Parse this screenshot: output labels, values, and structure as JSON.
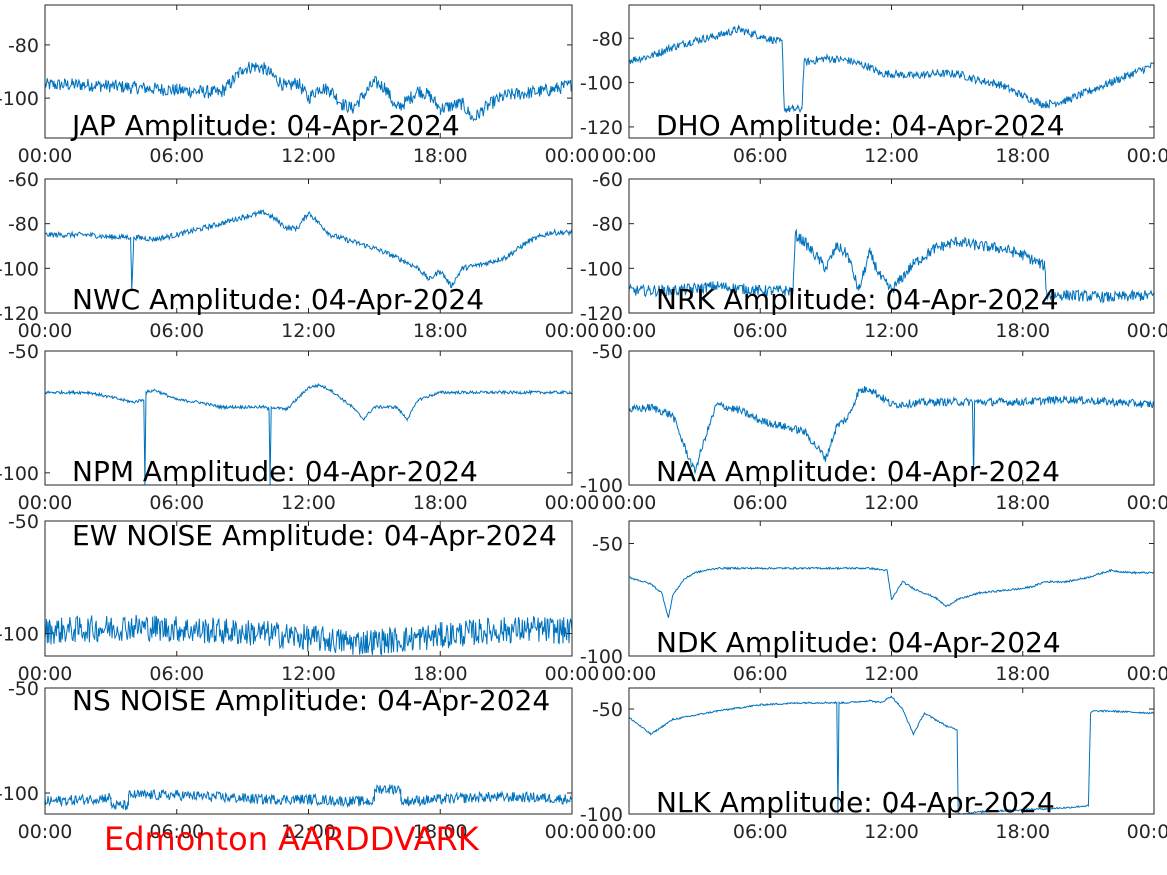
{
  "station_label": "Edmonton AARDDVARK",
  "colors": {
    "line": "#0072bd",
    "station": "#ff0000",
    "axis": "#262626"
  },
  "chart_data": [
    {
      "type": "line",
      "title": "JAP Amplitude: 04-Apr-2024",
      "xticks": [
        "00:00",
        "06:00",
        "12:00",
        "18:00",
        "00:00"
      ],
      "ylim": [
        -115,
        -65
      ],
      "yticks": [
        -80,
        -100
      ],
      "ytick_labels": [
        "-80",
        "-100"
      ],
      "noise": 2.5,
      "x": [
        0,
        2,
        4,
        6,
        8,
        8.5,
        9,
        9.5,
        10,
        11,
        11.5,
        12,
        12.5,
        13,
        13.5,
        14,
        14.5,
        15,
        15.5,
        16,
        16.5,
        17,
        17.5,
        18,
        19,
        19.5,
        20,
        20.5,
        21,
        22,
        23,
        24
      ],
      "y": [
        -95,
        -95,
        -96,
        -97,
        -98,
        -94,
        -89,
        -88,
        -89,
        -96,
        -94,
        -100,
        -96,
        -97,
        -102,
        -104,
        -99,
        -94,
        -96,
        -104,
        -101,
        -97,
        -99,
        -104,
        -102,
        -108,
        -104,
        -101,
        -99,
        -98,
        -97,
        -95
      ]
    },
    {
      "type": "line",
      "title": "DHO Amplitude: 04-Apr-2024",
      "xticks": [
        "00:00",
        "06:00",
        "12:00",
        "18:00",
        "00:00"
      ],
      "ylim": [
        -125,
        -65
      ],
      "yticks": [
        -80,
        -100,
        -120
      ],
      "ytick_labels": [
        "-80",
        "-100",
        "-120"
      ],
      "noise": 1.8,
      "x": [
        0,
        1,
        2,
        3,
        4,
        5,
        6,
        7,
        7.1,
        7.5,
        7.9,
        8,
        9,
        10,
        11,
        11.5,
        12,
        13,
        14,
        15,
        16,
        17,
        18,
        19,
        20,
        21,
        22,
        23,
        24
      ],
      "y": [
        -90,
        -88,
        -84,
        -81,
        -79,
        -76,
        -79,
        -82,
        -112,
        -112,
        -112,
        -91,
        -89,
        -90,
        -93,
        -96,
        -96,
        -97,
        -96,
        -96,
        -99,
        -101,
        -106,
        -110,
        -108,
        -104,
        -100,
        -96,
        -92
      ]
    },
    {
      "type": "line",
      "title": "NWC Amplitude: 04-Apr-2024",
      "xticks": [
        "00:00",
        "06:00",
        "12:00",
        "18:00",
        "00:00"
      ],
      "ylim": [
        -120,
        -60
      ],
      "yticks": [
        -60,
        -80,
        -100,
        -120
      ],
      "ytick_labels": [
        "-60",
        "-80",
        "-100",
        "-120"
      ],
      "noise": 1.2,
      "x": [
        0,
        2,
        3,
        3.9,
        3.95,
        4.05,
        5,
        6,
        8,
        9,
        10,
        10.5,
        11,
        11.5,
        12,
        12.5,
        13,
        14,
        15,
        16,
        17,
        17.5,
        18,
        18.5,
        19,
        20,
        21,
        22,
        23,
        24
      ],
      "y": [
        -85,
        -85,
        -86,
        -86,
        -110,
        -86,
        -87,
        -85,
        -80,
        -77,
        -75,
        -78,
        -82,
        -82,
        -75,
        -80,
        -85,
        -88,
        -91,
        -95,
        -100,
        -105,
        -101,
        -108,
        -100,
        -98,
        -95,
        -88,
        -84,
        -84
      ]
    },
    {
      "type": "line",
      "title": "NRK Amplitude: 04-Apr-2024",
      "xticks": [
        "00:00",
        "06:00",
        "12:00",
        "18:00",
        "00:00"
      ],
      "ylim": [
        -120,
        -60
      ],
      "yticks": [
        -60,
        -80,
        -100,
        -120
      ],
      "ytick_labels": [
        "-60",
        "-80",
        "-100",
        "-120"
      ],
      "noise": 2.5,
      "x": [
        0,
        2,
        4,
        6,
        7.5,
        7.6,
        8,
        9,
        9.5,
        10,
        10.5,
        11,
        11.5,
        12,
        13,
        14,
        15,
        16,
        17,
        18,
        19,
        19.1,
        20,
        22,
        24
      ],
      "y": [
        -110,
        -110,
        -108,
        -110,
        -110,
        -85,
        -88,
        -100,
        -90,
        -94,
        -110,
        -93,
        -104,
        -110,
        -98,
        -91,
        -88,
        -90,
        -91,
        -94,
        -99,
        -112,
        -112,
        -113,
        -112
      ]
    },
    {
      "type": "line",
      "title": "NPM Amplitude: 04-Apr-2024",
      "xticks": [
        "00:00",
        "06:00",
        "12:00",
        "18:00",
        "00:00"
      ],
      "ylim": [
        -105,
        -50
      ],
      "yticks": [
        -50,
        -100
      ],
      "ytick_labels": [
        "-50",
        "-100"
      ],
      "noise": 0.6,
      "x": [
        0,
        2,
        4,
        4.5,
        4.55,
        4.6,
        5,
        6,
        7,
        8,
        9,
        10,
        10.2,
        10.25,
        10.3,
        11,
        12,
        12.5,
        13,
        14,
        14.5,
        15,
        16,
        16.5,
        17,
        18,
        20,
        22,
        24
      ],
      "y": [
        -67,
        -67,
        -71,
        -70,
        -105,
        -67,
        -66,
        -70,
        -71,
        -73,
        -73,
        -73,
        -74,
        -105,
        -73,
        -74,
        -65,
        -64,
        -66,
        -73,
        -78,
        -73,
        -73,
        -78,
        -70,
        -67,
        -67,
        -67,
        -67
      ]
    },
    {
      "type": "line",
      "title": "NAA Amplitude: 04-Apr-2024",
      "xticks": [
        "00:00",
        "06:00",
        "12:00",
        "18:00",
        "00:00"
      ],
      "ylim": [
        -100,
        -50
      ],
      "yticks": [
        -50,
        -100
      ],
      "ytick_labels": [
        "-50",
        "-100"
      ],
      "noise": 1.5,
      "x": [
        0,
        1,
        2,
        2.5,
        3,
        3.5,
        4,
        5,
        6,
        7,
        8,
        8.5,
        9,
        9.5,
        10,
        10.5,
        11,
        12,
        14,
        15,
        15.7,
        15.75,
        15.8,
        16,
        18,
        20,
        22,
        24
      ],
      "y": [
        -72,
        -71,
        -74,
        -85,
        -95,
        -82,
        -70,
        -72,
        -76,
        -78,
        -80,
        -85,
        -90,
        -78,
        -75,
        -65,
        -64,
        -70,
        -69,
        -69,
        -69,
        -98,
        -69,
        -69,
        -69,
        -68,
        -69,
        -70
      ]
    },
    {
      "type": "line",
      "title": "EW NOISE Amplitude: 04-Apr-2024",
      "xticks": [
        "00:00",
        "06:00",
        "12:00",
        "18:00",
        "00:00"
      ],
      "ylim": [
        -110,
        -50
      ],
      "yticks": [
        -50,
        -100
      ],
      "ytick_labels": [
        "-50",
        "-100"
      ],
      "noise": 6,
      "x": [
        0,
        2,
        4,
        6,
        8,
        10,
        12,
        14,
        16,
        18,
        20,
        22,
        24
      ],
      "y": [
        -99,
        -98,
        -97,
        -98,
        -99,
        -100,
        -102,
        -104,
        -103,
        -101,
        -99,
        -98,
        -99
      ]
    },
    {
      "type": "line",
      "title": "NDK Amplitude: 04-Apr-2024",
      "xticks": [
        "00:00",
        "06:00",
        "12:00",
        "18:00",
        "00:00"
      ],
      "ylim": [
        -100,
        -40
      ],
      "yticks": [
        -50,
        -100
      ],
      "ytick_labels": [
        "-50",
        "-100"
      ],
      "noise": 0.4,
      "x": [
        0,
        1,
        1.5,
        1.8,
        2,
        2.5,
        3,
        4,
        6,
        8,
        10,
        11,
        11.8,
        12,
        12.5,
        13,
        14,
        14.5,
        15,
        16,
        17,
        18,
        18.5,
        19,
        20,
        21,
        22,
        23,
        24
      ],
      "y": [
        -65,
        -68,
        -72,
        -83,
        -73,
        -66,
        -63,
        -61,
        -61,
        -61,
        -61,
        -61,
        -62,
        -75,
        -67,
        -70,
        -74,
        -78,
        -75,
        -72,
        -71,
        -70,
        -69,
        -67,
        -67,
        -65,
        -62,
        -63,
        -63
      ]
    },
    {
      "type": "line",
      "title": "NS NOISE Amplitude: 04-Apr-2024",
      "xticks": [
        "00:00",
        "06:00",
        "12:00",
        "18:00",
        "00:00"
      ],
      "ylim": [
        -110,
        -50
      ],
      "yticks": [
        -50,
        -100
      ],
      "ytick_labels": [
        "-50",
        "-100"
      ],
      "noise": 2.5,
      "x": [
        0,
        2,
        3,
        3.01,
        3.8,
        3.81,
        6,
        8,
        10,
        12,
        14,
        15,
        15.01,
        16.2,
        16.21,
        18,
        20,
        22,
        24
      ],
      "y": [
        -104,
        -103,
        -102,
        -106,
        -106,
        -101,
        -101,
        -102,
        -103,
        -103,
        -104,
        -104,
        -98,
        -98,
        -104,
        -103,
        -102,
        -102,
        -103
      ]
    },
    {
      "type": "line",
      "title": "NLK Amplitude: 04-Apr-2024",
      "xticks": [
        "00:00",
        "06:00",
        "12:00",
        "18:00",
        "00:00"
      ],
      "ylim": [
        -100,
        -40
      ],
      "yticks": [
        -50,
        -100
      ],
      "ytick_labels": [
        "-50",
        "-100"
      ],
      "noise": 0.4,
      "x": [
        0,
        1,
        2,
        4,
        6,
        8,
        9.5,
        9.55,
        9.6,
        10,
        11,
        11.5,
        12,
        12.5,
        13,
        13.5,
        14,
        14.5,
        15,
        15.05,
        15.1,
        16,
        18,
        20,
        21,
        21.1,
        21.2,
        22,
        24
      ],
      "y": [
        -54,
        -62,
        -55,
        -51,
        -48,
        -47,
        -47,
        -100,
        -47,
        -47,
        -46,
        -47,
        -44,
        -50,
        -62,
        -52,
        -55,
        -58,
        -60,
        -100,
        -100,
        -99,
        -98,
        -97,
        -96,
        -52,
        -51,
        -51,
        -52
      ]
    }
  ]
}
